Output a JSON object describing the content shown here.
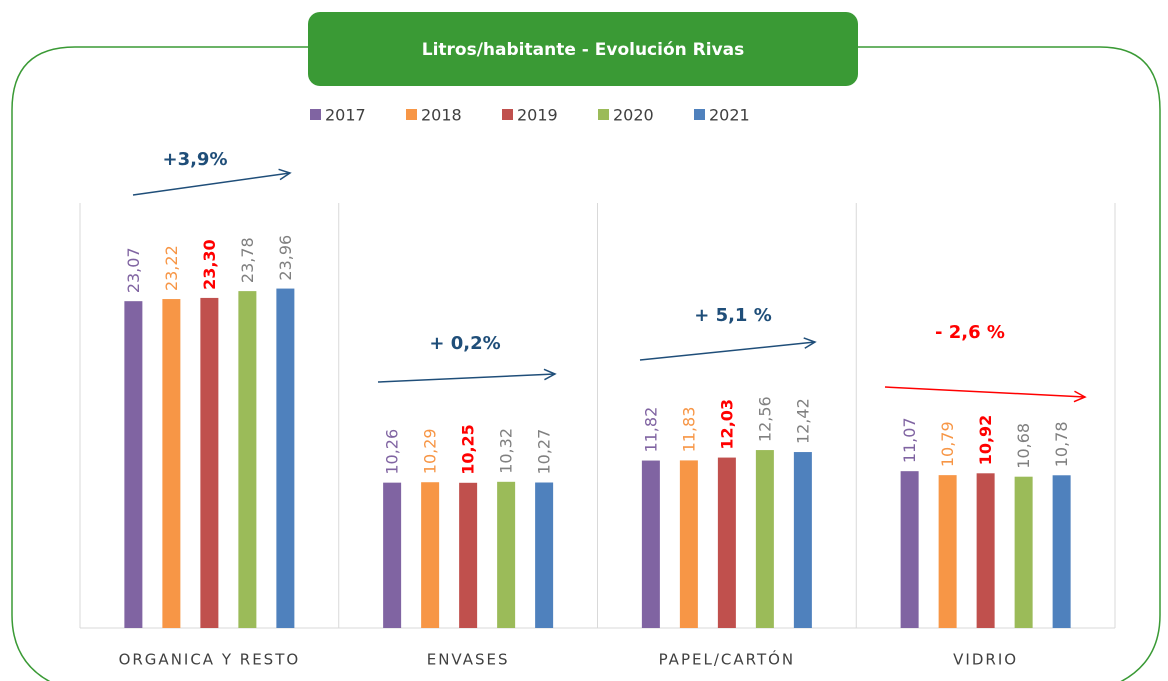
{
  "chart_data": {
    "type": "bar",
    "title": "Litros/habitante - Evolución Rivas",
    "categories": [
      "ORGANICA Y RESTO",
      "ENVASES",
      "PAPEL/CARTÓN",
      "VIDRIO"
    ],
    "ylim": [
      0,
      30
    ],
    "series": [
      {
        "name": "2017",
        "color": "#8064a2",
        "label_color": "#8064a2",
        "values": [
          23.07,
          10.26,
          11.82,
          11.07
        ],
        "value_labels": [
          "23,07",
          "10,26",
          "11,82",
          "11,07"
        ]
      },
      {
        "name": "2018",
        "color": "#f79646",
        "label_color": "#f79646",
        "values": [
          23.22,
          10.29,
          11.83,
          10.79
        ],
        "value_labels": [
          "23,22",
          "10,29",
          "11,83",
          "10,79"
        ]
      },
      {
        "name": "2019",
        "color": "#c0504d",
        "label_color": "#ff0000",
        "values": [
          23.3,
          10.25,
          12.03,
          10.92
        ],
        "value_labels": [
          "23,30",
          "10,25",
          "12,03",
          "10,92"
        ]
      },
      {
        "name": "2020",
        "color": "#9bbb59",
        "label_color": "#808080",
        "values": [
          23.78,
          10.32,
          12.56,
          10.68
        ],
        "value_labels": [
          "23,78",
          "10,32",
          "12,56",
          "10,68"
        ]
      },
      {
        "name": "2021",
        "color": "#4f81bd",
        "label_color": "#808080",
        "values": [
          23.96,
          10.27,
          12.42,
          10.78
        ],
        "value_labels": [
          "23,96",
          "10,27",
          "12,42",
          "10,78"
        ]
      }
    ],
    "annotations": [
      {
        "text": "+3,9%",
        "color": "#1f4e79"
      },
      {
        "text": "+ 0,2%",
        "color": "#1f4e79"
      },
      {
        "text": "+ 5,1 %",
        "color": "#1f4e79"
      },
      {
        "text": "- 2,6 %",
        "color": "#ff0000"
      }
    ]
  }
}
